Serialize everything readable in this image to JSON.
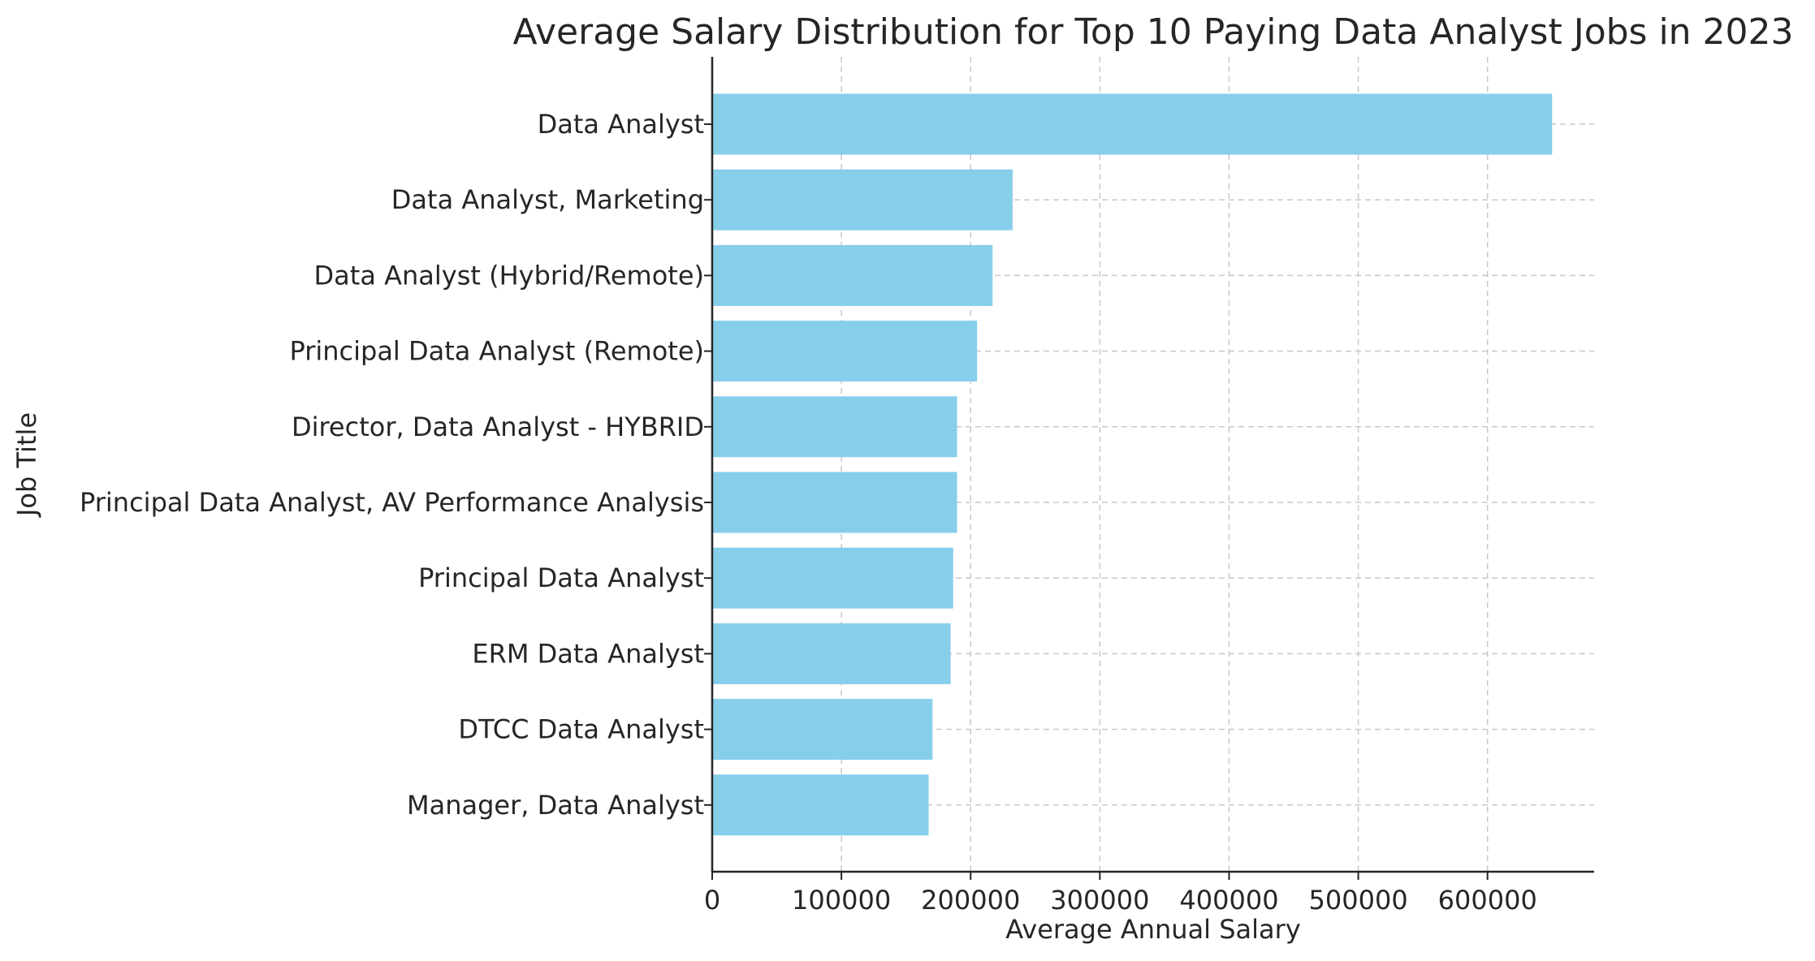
{
  "chart_data": {
    "type": "bar",
    "orientation": "horizontal",
    "title": "Average Salary Distribution for Top 10 Paying Data Analyst Jobs in 2023",
    "xlabel": "Average Annual Salary",
    "ylabel": "Job Title",
    "categories": [
      "Data Analyst",
      "Data Analyst, Marketing",
      "Data Analyst (Hybrid/Remote)",
      "Principal Data Analyst (Remote)",
      "Director, Data Analyst - HYBRID",
      "Principal Data Analyst, AV Performance Analysis",
      "Principal Data Analyst",
      "ERM Data Analyst",
      "DTCC Data Analyst",
      "Manager, Data Analyst"
    ],
    "values": [
      650000,
      232500,
      217000,
      205000,
      189500,
      189500,
      186500,
      184500,
      170500,
      167500
    ],
    "xlim": [
      0,
      682500
    ],
    "xticks": [
      0,
      100000,
      200000,
      300000,
      400000,
      500000,
      600000
    ],
    "xtick_labels": [
      "0",
      "100000",
      "200000",
      "300000",
      "400000",
      "500000",
      "600000"
    ],
    "grid": true,
    "bar_color": "#87ceeb"
  }
}
